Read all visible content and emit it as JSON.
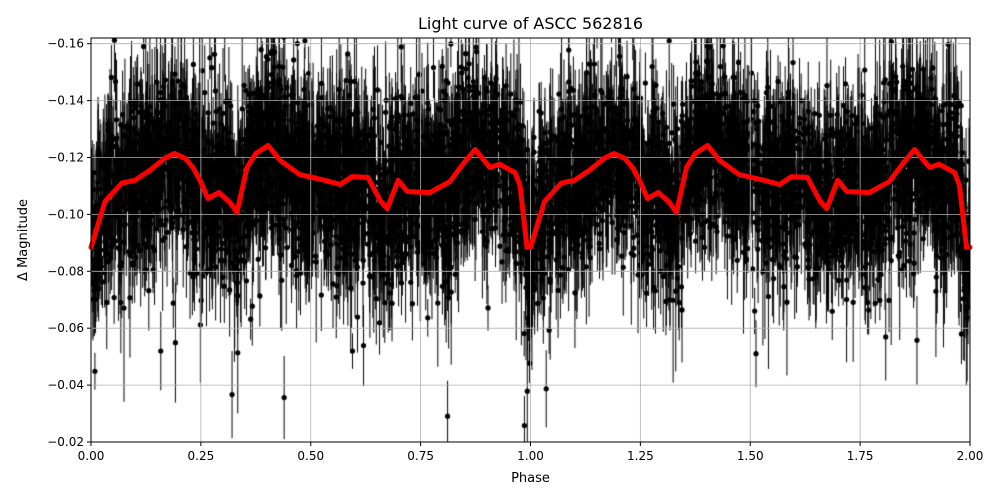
{
  "chart_data": {
    "type": "scatter",
    "title": "Light curve of ASCC 562816",
    "xlabel": "Phase",
    "ylabel": "Δ Magnitude",
    "xlim": [
      0,
      2.0
    ],
    "ylim": [
      -0.02,
      -0.162
    ],
    "y_inverted": true,
    "grid": true,
    "xticks": [
      "0.00",
      "0.25",
      "0.50",
      "0.75",
      "1.00",
      "1.25",
      "1.50",
      "1.75",
      "2.00"
    ],
    "xtick_values": [
      0,
      0.25,
      0.5,
      0.75,
      1.0,
      1.25,
      1.5,
      1.75,
      2.0
    ],
    "yticks": [
      "−0.02",
      "−0.04",
      "−0.06",
      "−0.08",
      "−0.10",
      "−0.12",
      "−0.14",
      "−0.16"
    ],
    "ytick_values": [
      -0.02,
      -0.04,
      -0.06,
      -0.08,
      -0.1,
      -0.12,
      -0.14,
      -0.16
    ],
    "series": [
      {
        "kind": "data points with error bars",
        "color": "#000000"
      },
      {
        "kind": "smoothed model curve",
        "color": "#ff0000",
        "x": [
          0,
          0.032,
          0.07,
          0.1,
          0.134,
          0.168,
          0.19,
          0.214,
          0.232,
          0.248,
          0.266,
          0.291,
          0.316,
          0.332,
          0.355,
          0.375,
          0.403,
          0.43,
          0.475,
          0.532,
          0.567,
          0.594,
          0.63,
          0.658,
          0.674,
          0.699,
          0.72,
          0.771,
          0.817,
          0.851,
          0.874,
          0.908,
          0.93,
          0.965,
          0.976,
          0.992
        ],
        "y": [
          -0.0884,
          -0.1046,
          -0.111,
          -0.112,
          -0.1155,
          -0.1197,
          -0.1214,
          -0.1197,
          -0.1165,
          -0.112,
          -0.1056,
          -0.1077,
          -0.1042,
          -0.1007,
          -0.1165,
          -0.1214,
          -0.1242,
          -0.119,
          -0.114,
          -0.112,
          -0.1105,
          -0.1133,
          -0.113,
          -0.1049,
          -0.102,
          -0.112,
          -0.108,
          -0.1077,
          -0.1116,
          -0.1186,
          -0.1228,
          -0.1165,
          -0.1176,
          -0.1147,
          -0.1102,
          -0.0884
        ],
        "repeats_with_period": 1.0
      }
    ]
  }
}
